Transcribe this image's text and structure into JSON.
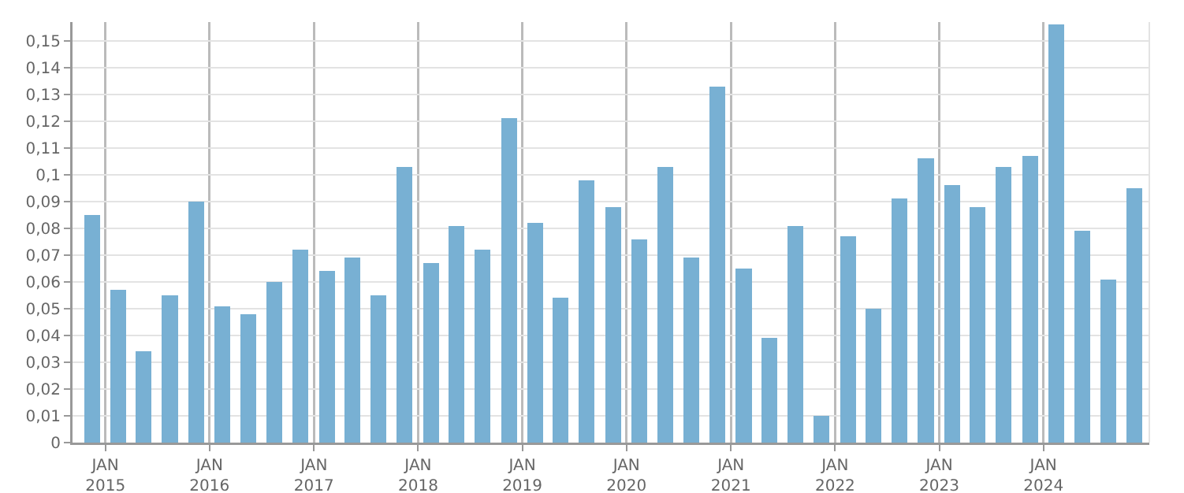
{
  "chart_data": {
    "type": "bar",
    "color": "#78b0d3",
    "x": [
      "2014-11-15",
      "2015-02-15",
      "2015-05-15",
      "2015-08-15",
      "2015-11-15",
      "2016-02-15",
      "2016-05-15",
      "2016-08-15",
      "2016-11-15",
      "2017-02-15",
      "2017-05-15",
      "2017-08-15",
      "2017-11-15",
      "2018-02-15",
      "2018-05-15",
      "2018-08-15",
      "2018-11-15",
      "2019-02-15",
      "2019-05-15",
      "2019-08-15",
      "2019-11-15",
      "2020-02-15",
      "2020-05-15",
      "2020-08-15",
      "2020-11-15",
      "2021-02-15",
      "2021-05-15",
      "2021-08-15",
      "2021-11-15",
      "2022-02-15",
      "2022-05-15",
      "2022-08-15",
      "2022-11-15",
      "2023-02-15",
      "2023-05-15",
      "2023-08-15",
      "2023-11-15",
      "2024-02-15",
      "2024-05-15",
      "2024-08-15",
      "2024-11-15"
    ],
    "values": [
      0.085,
      0.057,
      0.034,
      0.055,
      0.09,
      0.051,
      0.048,
      0.06,
      0.072,
      0.064,
      0.069,
      0.055,
      0.103,
      0.067,
      0.081,
      0.072,
      0.121,
      0.082,
      0.054,
      0.098,
      0.088,
      0.076,
      0.103,
      0.069,
      0.133,
      0.065,
      0.039,
      0.081,
      0.01,
      0.077,
      0.05,
      0.091,
      0.106,
      0.096,
      0.088,
      0.103,
      0.107,
      0.156,
      0.079,
      0.061,
      0.095
    ],
    "xlim": [
      "2014-09-08",
      "2025-01-06"
    ],
    "xticks": [
      {
        "value": "2015-01-01",
        "label": "JAN\n2015"
      },
      {
        "value": "2016-01-01",
        "label": "JAN\n2016"
      },
      {
        "value": "2017-01-01",
        "label": "JAN\n2017"
      },
      {
        "value": "2018-01-01",
        "label": "JAN\n2018"
      },
      {
        "value": "2019-01-01",
        "label": "JAN\n2019"
      },
      {
        "value": "2020-01-01",
        "label": "JAN\n2020"
      },
      {
        "value": "2021-01-01",
        "label": "JAN\n2021"
      },
      {
        "value": "2022-01-01",
        "label": "JAN\n2022"
      },
      {
        "value": "2023-01-01",
        "label": "JAN\n2023"
      },
      {
        "value": "2024-01-01",
        "label": "JAN\n2024"
      }
    ],
    "ylim": [
      0,
      0.157
    ],
    "yticks": [
      0,
      {
        "value": 0.01,
        "label": "0,01"
      },
      {
        "value": 0.02,
        "label": "0,02"
      },
      {
        "value": 0.03,
        "label": "0,03"
      },
      {
        "value": 0.04,
        "label": "0,04"
      },
      {
        "value": 0.05,
        "label": "0,05"
      },
      {
        "value": 0.06,
        "label": "0,06"
      },
      {
        "value": 0.07,
        "label": "0,07"
      },
      {
        "value": 0.08,
        "label": "0,08"
      },
      {
        "value": 0.09,
        "label": "0,09"
      },
      {
        "value": 0.1,
        "label": "0,1"
      },
      {
        "value": 0.11,
        "label": "0,11"
      },
      {
        "value": 0.12,
        "label": "0,12"
      },
      {
        "value": 0.13,
        "label": "0,13"
      },
      {
        "value": 0.14,
        "label": "0,14"
      },
      {
        "value": 0.15,
        "label": "0,15"
      }
    ],
    "grid": true,
    "legend": false
  }
}
